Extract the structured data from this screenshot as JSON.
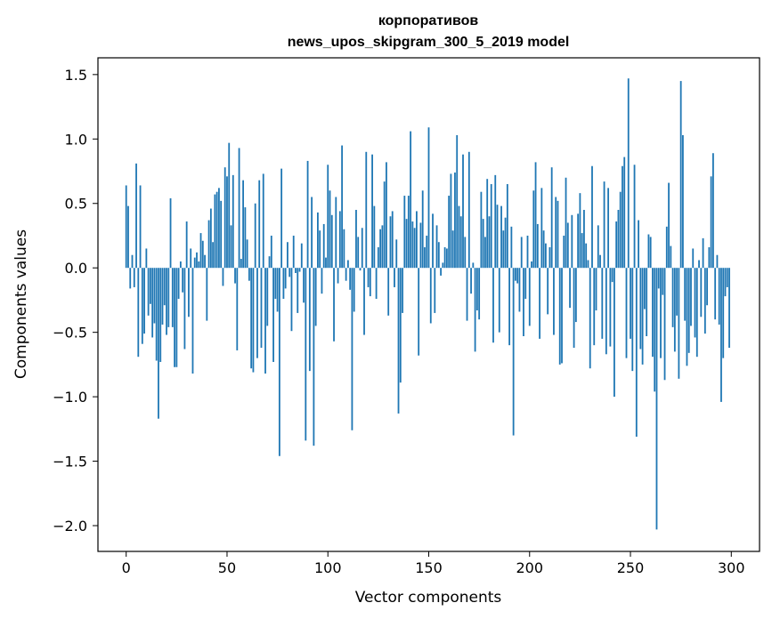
{
  "chart_data": {
    "type": "bar",
    "title": "корпоративов",
    "subtitle": "news_upos_skipgram_300_5_2019 model",
    "xlabel": "Vector components",
    "ylabel": "Components values",
    "xlim": [
      -14,
      314
    ],
    "ylim": [
      -2.2,
      1.63
    ],
    "xticks": [
      0,
      50,
      100,
      150,
      200,
      250,
      300
    ],
    "yticks": [
      -2.0,
      -1.5,
      -1.0,
      -0.5,
      0.0,
      0.5,
      1.0,
      1.5
    ],
    "xtick_labels": [
      "0",
      "50",
      "100",
      "150",
      "200",
      "250",
      "300"
    ],
    "ytick_labels": [
      "−2.0",
      "−1.5",
      "−1.0",
      "−0.5",
      "0.0",
      "0.5",
      "1.0",
      "1.5"
    ],
    "grid": false,
    "bar_color": "#1f77b4",
    "values": [
      0.64,
      0.48,
      -0.16,
      0.1,
      -0.15,
      0.81,
      -0.69,
      0.64,
      -0.59,
      -0.51,
      0.15,
      -0.37,
      -0.28,
      -0.54,
      -0.43,
      -0.72,
      -1.17,
      -0.73,
      -0.44,
      -0.29,
      -0.52,
      -0.46,
      0.54,
      -0.46,
      -0.77,
      -0.77,
      -0.24,
      0.05,
      -0.19,
      -0.63,
      0.36,
      -0.38,
      0.15,
      -0.82,
      0.08,
      0.12,
      0.05,
      0.27,
      0.21,
      0.1,
      -0.41,
      0.37,
      0.46,
      0.2,
      0.57,
      0.59,
      0.62,
      0.52,
      -0.14,
      0.78,
      0.71,
      0.97,
      0.33,
      0.72,
      -0.12,
      -0.64,
      0.93,
      0.07,
      0.68,
      0.47,
      0.22,
      -0.1,
      -0.78,
      -0.81,
      0.5,
      -0.7,
      0.68,
      -0.62,
      0.73,
      -0.82,
      -0.45,
      0.09,
      0.25,
      -0.73,
      -0.24,
      -0.34,
      -1.46,
      0.77,
      -0.24,
      -0.16,
      0.2,
      -0.07,
      -0.49,
      0.25,
      -0.04,
      -0.35,
      -0.03,
      0.19,
      -0.27,
      -1.34,
      0.83,
      -0.8,
      0.55,
      -1.38,
      -0.45,
      0.43,
      0.29,
      -0.2,
      0.34,
      0.08,
      0.8,
      0.6,
      0.41,
      -0.57,
      0.55,
      -0.12,
      0.44,
      0.95,
      0.3,
      -0.1,
      0.06,
      -0.17,
      -1.26,
      -0.34,
      0.45,
      0.24,
      -0.02,
      0.31,
      -0.52,
      0.9,
      -0.15,
      -0.22,
      0.88,
      0.48,
      -0.24,
      0.16,
      0.3,
      0.33,
      0.67,
      0.82,
      -0.37,
      0.4,
      0.44,
      -0.15,
      0.22,
      -1.13,
      -0.89,
      -0.35,
      0.56,
      0.38,
      0.56,
      1.06,
      0.36,
      0.31,
      0.44,
      -0.68,
      0.35,
      0.6,
      0.16,
      0.25,
      1.09,
      -0.43,
      0.42,
      -0.35,
      0.33,
      0.2,
      -0.06,
      0.04,
      0.16,
      0.15,
      0.56,
      0.73,
      0.29,
      0.74,
      1.03,
      0.48,
      0.4,
      0.88,
      0.24,
      -0.41,
      0.9,
      -0.2,
      0.04,
      -0.65,
      -0.33,
      -0.4,
      0.59,
      0.38,
      0.24,
      0.69,
      0.4,
      0.65,
      -0.58,
      0.72,
      0.49,
      -0.5,
      0.48,
      0.29,
      0.39,
      0.65,
      -0.6,
      0.32,
      -1.3,
      -0.1,
      -0.12,
      -0.34,
      0.24,
      -0.53,
      -0.24,
      0.25,
      -0.45,
      0.05,
      0.6,
      0.82,
      0.34,
      -0.55,
      0.62,
      0.29,
      0.19,
      -0.36,
      0.16,
      0.78,
      -0.52,
      0.55,
      0.52,
      -0.75,
      -0.74,
      0.25,
      0.7,
      0.35,
      -0.31,
      0.41,
      -0.62,
      -0.42,
      0.42,
      0.58,
      0.27,
      0.45,
      0.19,
      0.06,
      -0.78,
      0.79,
      -0.6,
      -0.33,
      0.33,
      0.1,
      -0.55,
      0.67,
      -0.67,
      0.62,
      -0.61,
      -0.11,
      -1.0,
      0.36,
      0.45,
      0.59,
      0.79,
      0.86,
      -0.7,
      1.47,
      -0.55,
      -0.8,
      0.8,
      -1.31,
      0.37,
      -0.63,
      -0.75,
      -0.32,
      -0.53,
      0.26,
      0.24,
      -0.69,
      -0.96,
      -2.03,
      -0.16,
      -0.7,
      -0.21,
      -0.87,
      0.32,
      0.66,
      0.17,
      -0.46,
      -0.65,
      -0.37,
      -0.86,
      1.45,
      1.03,
      -0.41,
      -0.76,
      -0.66,
      -0.45,
      0.15,
      -0.54,
      -0.69,
      0.06,
      -0.38,
      0.23,
      -0.51,
      -0.29,
      0.16,
      0.71,
      0.89,
      -0.4,
      0.1,
      -0.44,
      -1.04,
      -0.7,
      -0.22,
      -0.15,
      -0.62
    ]
  }
}
